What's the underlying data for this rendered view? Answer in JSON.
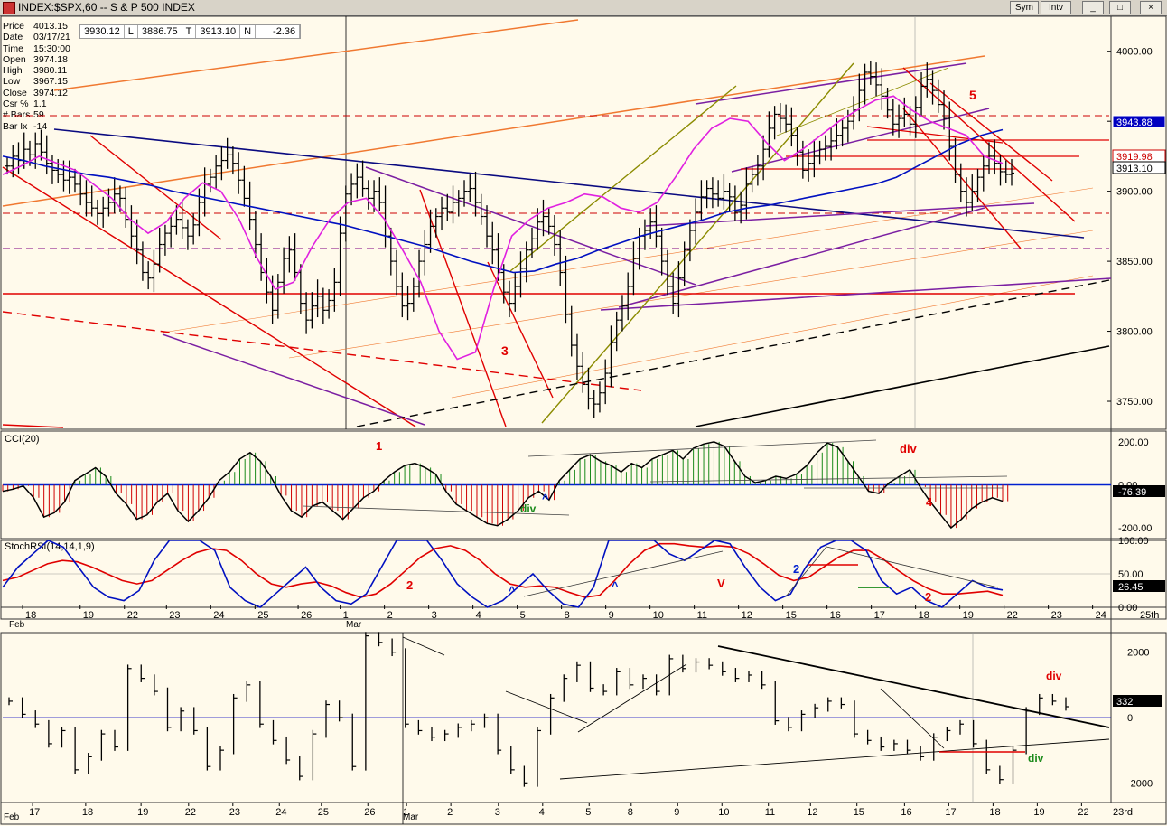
{
  "window": {
    "title": "INDEX:$SPX,60 -- S & P 500 INDEX",
    "buttons": [
      "Sym",
      "Intv"
    ]
  },
  "status": {
    "v1": "3930.12",
    "c1": "L",
    "v2": "3886.75",
    "c2": "T",
    "v3": "3913.10",
    "c3": "N",
    "v4": "-2.36"
  },
  "info": [
    {
      "k": "Price",
      "v": "4013.15"
    },
    {
      "k": "Date",
      "v": "03/17/21"
    },
    {
      "k": "Time",
      "v": "15:30:00"
    },
    {
      "k": "Open",
      "v": "3974.18"
    },
    {
      "k": "High",
      "v": "3980.11"
    },
    {
      "k": "Low",
      "v": "3967.15"
    },
    {
      "k": "Close",
      "v": "3974.12"
    },
    {
      "k": "Csr %",
      "v": "1.1"
    },
    {
      "k": "# Bars",
      "v": "59"
    },
    {
      "k": "Bar Ix",
      "v": "-14"
    }
  ],
  "colors": {
    "background": "#fffaeb",
    "red": "#e00000",
    "purple": "#7b1fa2",
    "orange": "#f07830",
    "olive": "#8b8b00",
    "blue": "#0010c0",
    "magenta": "#e020e0",
    "navy": "#0000a0"
  },
  "chart_data": [
    {
      "type": "candlestick",
      "panel": "price",
      "ylim": [
        3730,
        4025
      ],
      "y_ticks": [
        "4000.00",
        "3950.00",
        "3900.00",
        "3850.00",
        "3800.00",
        "3750.00"
      ],
      "last_labels": [
        {
          "text": "3943.88",
          "style": "blue"
        },
        {
          "text": "3919.98",
          "style": "red"
        },
        {
          "text": "3913.10",
          "style": "black"
        }
      ],
      "annotations": [
        "3",
        "5"
      ],
      "series": [
        {
          "name": "price",
          "close": [
            3918,
            3925,
            3922,
            3930,
            3926,
            3934,
            3928,
            3920,
            3915,
            3912,
            3908,
            3910,
            3905,
            3898,
            3892,
            3888,
            3884,
            3888,
            3892,
            3898,
            3895,
            3880,
            3868,
            3858,
            3842,
            3838,
            3848,
            3862,
            3870,
            3875,
            3880,
            3874,
            3868,
            3876,
            3892,
            3905,
            3910,
            3918,
            3922,
            3926,
            3920,
            3908,
            3895,
            3880,
            3862,
            3842,
            3828,
            3815,
            3835,
            3852,
            3858,
            3842,
            3820,
            3808,
            3818,
            3825,
            3815,
            3822,
            3835,
            3870,
            3898,
            3905,
            3910,
            3902,
            3895,
            3900,
            3892,
            3868,
            3850,
            3832,
            3818,
            3820,
            3832,
            3850,
            3862,
            3875,
            3882,
            3888,
            3885,
            3892,
            3895,
            3900,
            3902,
            3892,
            3882,
            3868,
            3858,
            3842,
            3828,
            3820,
            3832,
            3845,
            3858,
            3866,
            3878,
            3882,
            3875,
            3862,
            3842,
            3812,
            3790,
            3775,
            3762,
            3752,
            3748,
            3756,
            3770,
            3792,
            3808,
            3818,
            3832,
            3852,
            3868,
            3872,
            3878,
            3868,
            3850,
            3832,
            3820,
            3838,
            3858,
            3872,
            3885,
            3896,
            3902,
            3898,
            3895,
            3900,
            3896,
            3885,
            3890,
            3905,
            3912,
            3918,
            3930,
            3945,
            3955,
            3952,
            3948,
            3940,
            3928,
            3915,
            3920,
            3925,
            3930,
            3932,
            3936,
            3940,
            3945,
            3950,
            3958,
            3972,
            3985,
            3982,
            3976,
            3968,
            3958,
            3948,
            3952,
            3955,
            3948,
            3960,
            3975,
            3980,
            3972,
            3962,
            3952,
            3932,
            3912,
            3900,
            3892,
            3900,
            3910,
            3918,
            3925,
            3920,
            3914,
            3912,
            3913
          ]
        },
        {
          "name": "ma-blue",
          "values": [
            3925,
            3922,
            3918,
            3915,
            3912,
            3910,
            3907,
            3904,
            3900,
            3897,
            3894,
            3891,
            3888,
            3885,
            3882,
            3879,
            3876,
            3872,
            3868,
            3864,
            3860,
            3855,
            3850,
            3846,
            3842,
            3843,
            3848,
            3852,
            3858,
            3863,
            3868,
            3872,
            3876,
            3880,
            3885,
            3888,
            3890,
            3893,
            3896,
            3899,
            3902,
            3905,
            3910,
            3918,
            3926,
            3934,
            3940,
            3944
          ]
        },
        {
          "name": "ma-magenta",
          "values": [
            3912,
            3918,
            3925,
            3920,
            3915,
            3905,
            3895,
            3880,
            3870,
            3878,
            3895,
            3906,
            3900,
            3880,
            3852,
            3830,
            3835,
            3860,
            3880,
            3892,
            3895,
            3880,
            3858,
            3835,
            3800,
            3780,
            3785,
            3830,
            3868,
            3880,
            3888,
            3892,
            3898,
            3896,
            3888,
            3885,
            3892,
            3910,
            3930,
            3945,
            3952,
            3950,
            3935,
            3922,
            3930,
            3940,
            3950,
            3958,
            3965,
            3968,
            3958,
            3950,
            3945,
            3940,
            3925,
            3920
          ]
        }
      ]
    },
    {
      "type": "histogram",
      "panel": "CCI(20)",
      "ylim": [
        -250,
        250
      ],
      "y_ticks": [
        "200.00",
        "0.00",
        "-200.00"
      ],
      "last_label": "-76.39",
      "annotations": [
        "1",
        "div",
        "^",
        "div",
        "4"
      ],
      "values": [
        -30,
        -20,
        -5,
        -60,
        -150,
        -130,
        -80,
        20,
        50,
        80,
        40,
        -40,
        -90,
        -160,
        -140,
        -80,
        -40,
        -120,
        -170,
        -120,
        -60,
        20,
        60,
        120,
        150,
        110,
        40,
        -50,
        -120,
        -150,
        -100,
        -80,
        -120,
        -160,
        -110,
        -60,
        -30,
        20,
        60,
        90,
        100,
        80,
        50,
        -30,
        -90,
        -120,
        -150,
        -180,
        -190,
        -160,
        -120,
        -60,
        -30,
        -70,
        20,
        70,
        120,
        140,
        110,
        90,
        60,
        100,
        80,
        120,
        140,
        160,
        120,
        170,
        190,
        200,
        180,
        110,
        40,
        10,
        20,
        40,
        30,
        50,
        90,
        150,
        195,
        175,
        110,
        40,
        -30,
        -40,
        10,
        40,
        70,
        -10,
        -80,
        -140,
        -200,
        -160,
        -110,
        -80,
        -60,
        -76
      ]
    },
    {
      "type": "line",
      "panel": "StochRSI(14,14,1,9)",
      "ylim": [
        0,
        100
      ],
      "y_ticks": [
        "100.00",
        "50.00",
        "0.00"
      ],
      "last_label": "26.45",
      "annotations": [
        "2",
        "^",
        "^",
        "V",
        "2",
        "2"
      ],
      "series": [
        {
          "name": "stochrsi",
          "values": [
            30,
            60,
            80,
            100,
            90,
            60,
            30,
            15,
            10,
            25,
            70,
            100,
            100,
            100,
            85,
            30,
            10,
            0,
            20,
            40,
            60,
            30,
            10,
            5,
            20,
            60,
            100,
            100,
            100,
            70,
            35,
            15,
            0,
            10,
            30,
            50,
            25,
            5,
            0,
            30,
            100,
            100,
            100,
            100,
            80,
            70,
            85,
            100,
            95,
            60,
            30,
            10,
            20,
            60,
            90,
            100,
            100,
            85,
            40,
            20,
            30,
            10,
            0,
            20,
            40,
            30,
            26
          ]
        },
        {
          "name": "signal",
          "values": [
            40,
            45,
            55,
            65,
            70,
            68,
            60,
            50,
            40,
            35,
            40,
            55,
            70,
            82,
            88,
            85,
            70,
            50,
            35,
            30,
            35,
            38,
            32,
            22,
            15,
            20,
            35,
            55,
            75,
            88,
            92,
            85,
            70,
            50,
            35,
            30,
            32,
            30,
            22,
            15,
            18,
            40,
            65,
            85,
            95,
            95,
            92,
            90,
            92,
            90,
            80,
            65,
            48,
            40,
            45,
            60,
            75,
            85,
            85,
            72,
            55,
            40,
            28,
            20,
            20,
            22,
            24,
            18
          ]
        }
      ]
    },
    {
      "type": "bar",
      "panel": "breadth",
      "ylim": [
        -2600,
        2600
      ],
      "y_ticks": [
        "2000",
        "0",
        "-2000"
      ],
      "last_label": "332",
      "annotations": [
        "div",
        "div"
      ],
      "values": [
        500,
        100,
        -200,
        -800,
        -400,
        -1600,
        -1200,
        -500,
        -900,
        1500,
        1200,
        800,
        -300,
        200,
        -400,
        -1500,
        -1000,
        600,
        1000,
        -200,
        -700,
        -1300,
        -1800,
        -500,
        400,
        0,
        -1500,
        2500,
        2300,
        2000,
        -200,
        -400,
        -600,
        -500,
        -300,
        -200,
        0,
        -1000,
        -1600,
        -2000,
        -400,
        600,
        1200,
        1600,
        900,
        800,
        1400,
        1000,
        1200,
        800,
        1800,
        1500,
        1700,
        1600,
        1400,
        1200,
        1300,
        1000,
        -100,
        -300,
        100,
        300,
        500,
        400,
        -500,
        -700,
        -900,
        -800,
        -1000,
        -1200,
        -600,
        -400,
        -200,
        -800,
        -1600,
        -1900,
        -1000,
        200,
        600,
        500,
        332
      ]
    }
  ],
  "x_axis": {
    "top": [
      {
        "label": "18",
        "pos": 0.018
      },
      {
        "label": "19",
        "pos": 0.07
      },
      {
        "label": "22",
        "pos": 0.11
      },
      {
        "label": "23",
        "pos": 0.148
      },
      {
        "label": "24",
        "pos": 0.188
      },
      {
        "label": "25",
        "pos": 0.228
      },
      {
        "label": "26",
        "pos": 0.267
      },
      {
        "label": "1",
        "pos": 0.305
      },
      {
        "label": "2",
        "pos": 0.345
      },
      {
        "label": "3",
        "pos": 0.385
      },
      {
        "label": "4",
        "pos": 0.425
      },
      {
        "label": "5",
        "pos": 0.465
      },
      {
        "label": "8",
        "pos": 0.505
      },
      {
        "label": "9",
        "pos": 0.545
      },
      {
        "label": "10",
        "pos": 0.585
      },
      {
        "label": "11",
        "pos": 0.625
      },
      {
        "label": "12",
        "pos": 0.665
      },
      {
        "label": "15",
        "pos": 0.705
      },
      {
        "label": "16",
        "pos": 0.745
      },
      {
        "label": "17",
        "pos": 0.785
      },
      {
        "label": "18",
        "pos": 0.825
      },
      {
        "label": "19",
        "pos": 0.865
      },
      {
        "label": "22",
        "pos": 0.905
      },
      {
        "label": "23",
        "pos": 0.945
      },
      {
        "label": "24",
        "pos": 0.985
      }
    ],
    "top_months": [
      "Feb",
      "Mar"
    ],
    "top_right": "25th",
    "bottom": [
      {
        "label": "17",
        "pos": 0.027
      },
      {
        "label": "18",
        "pos": 0.075
      },
      {
        "label": "19",
        "pos": 0.125
      },
      {
        "label": "22",
        "pos": 0.168
      },
      {
        "label": "23",
        "pos": 0.208
      },
      {
        "label": "24",
        "pos": 0.25
      },
      {
        "label": "25",
        "pos": 0.288
      },
      {
        "label": "26",
        "pos": 0.33
      },
      {
        "label": "1",
        "pos": 0.365
      },
      {
        "label": "2",
        "pos": 0.405
      },
      {
        "label": "3",
        "pos": 0.448
      },
      {
        "label": "4",
        "pos": 0.488
      },
      {
        "label": "5",
        "pos": 0.53
      },
      {
        "label": "8",
        "pos": 0.568
      },
      {
        "label": "9",
        "pos": 0.61
      },
      {
        "label": "10",
        "pos": 0.65
      },
      {
        "label": "11",
        "pos": 0.692
      },
      {
        "label": "12",
        "pos": 0.73
      },
      {
        "label": "15",
        "pos": 0.772
      },
      {
        "label": "16",
        "pos": 0.815
      },
      {
        "label": "17",
        "pos": 0.855
      },
      {
        "label": "18",
        "pos": 0.895
      },
      {
        "label": "19",
        "pos": 0.935
      },
      {
        "label": "22",
        "pos": 0.975
      }
    ],
    "bottom_months": [
      "Feb",
      "Mar"
    ],
    "bottom_right": "23rd"
  }
}
